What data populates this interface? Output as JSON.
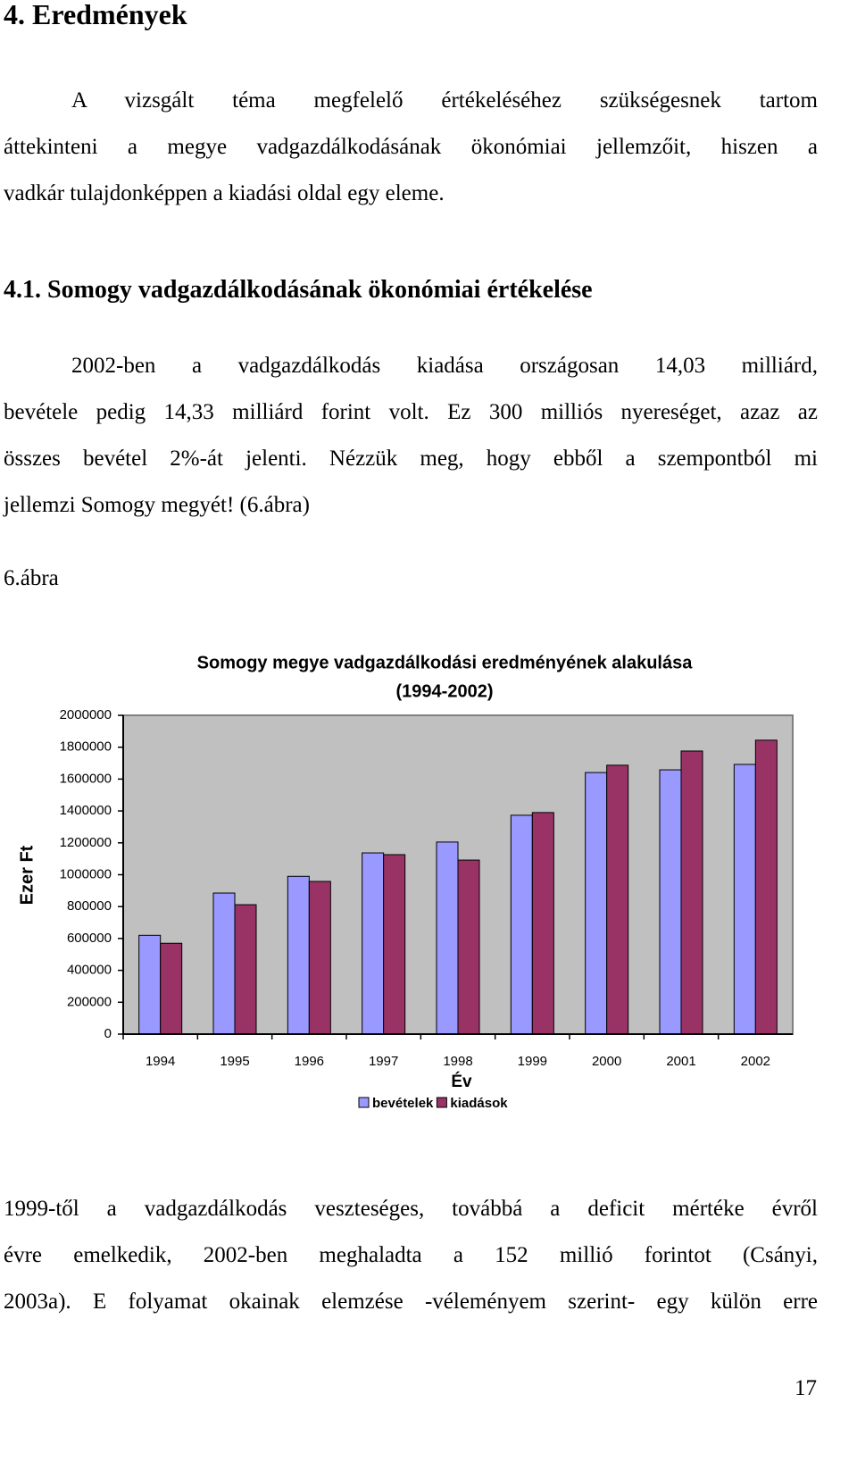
{
  "header": {
    "title": "4. Eredmények"
  },
  "paragraphs": [
    {
      "lines": [
        "A vizsgált téma megfelelő értékeléséhez szükségesnek tartom",
        "áttekinteni a megye vadgazdálkodásának ökonómiai jellemzőit, hiszen a",
        "vadkár tulajdonképpen a kiadási oldal egy eleme."
      ]
    },
    {
      "lines": [
        "2002-ben a vadgazdálkodás kiadása országosan 14,03 milliárd,",
        "bevétele pedig 14,33 milliárd forint volt. Ez 300 milliós nyereséget, azaz az",
        "összes bevétel 2%-át jelenti. Nézzük meg, hogy ebből a szempontból mi",
        "jellemzi Somogy megyét! (6.ábra)"
      ]
    },
    {
      "lines": [
        "1999-től a vadgazdálkodás veszteséges, továbbá a deficit mértéke évről",
        "évre emelkedik, 2002-ben meghaladta a 152 millió forintot (Csányi,",
        "2003a). E folyamat okainak elemzése -véleményem szerint- egy külön erre"
      ]
    }
  ],
  "section": {
    "title": "4.1. Somogy vadgazdálkodásának ökonómiai értékelése"
  },
  "figure_label": "6.ábra",
  "chart_data": {
    "type": "bar",
    "title": [
      "Somogy megye vadgazdálkodási eredményének alakulása",
      "(1994-2002)"
    ],
    "x_label": "Év",
    "y_label": "Ezer Ft",
    "categories": [
      "1994",
      "1995",
      "1996",
      "1997",
      "1998",
      "1999",
      "2000",
      "2001",
      "2002"
    ],
    "series": [
      {
        "name": "bevételek",
        "color": "#9999ff",
        "values": [
          620000,
          885000,
          990000,
          1137000,
          1205000,
          1373000,
          1641000,
          1658000,
          1692000
        ]
      },
      {
        "name": "kiadások",
        "color": "#993366",
        "values": [
          570000,
          812000,
          958000,
          1126000,
          1092000,
          1390000,
          1687000,
          1776000,
          1844000
        ]
      }
    ],
    "ylim": [
      0,
      2000000
    ],
    "yticks": [
      0,
      200000,
      400000,
      600000,
      800000,
      1000000,
      1200000,
      1400000,
      1600000,
      1800000,
      2000000
    ],
    "grid": false,
    "legend": "bottom"
  },
  "page_number": "17"
}
